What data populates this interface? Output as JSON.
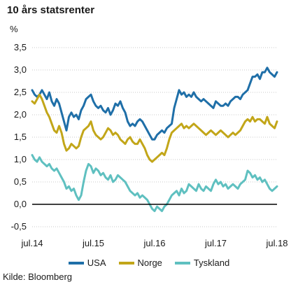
{
  "chart_data": {
    "type": "line",
    "title": "10 års statsrenter",
    "ylabel": "%",
    "source": "Kilde: Bloomberg",
    "ylim": [
      -0.5,
      3.5
    ],
    "y_ticks": [
      "3,5",
      "3,0",
      "2,5",
      "2,0",
      "1,5",
      "1,0",
      "0,5",
      "0,0",
      "-0,5"
    ],
    "y_tick_values": [
      3.5,
      3.0,
      2.5,
      2.0,
      1.5,
      1.0,
      0.5,
      0.0,
      -0.5
    ],
    "x_ticks": [
      "jul.14",
      "jul.15",
      "jul.16",
      "jul.17",
      "jul.18"
    ],
    "x_tick_values": [
      2014.5,
      2015.5,
      2016.5,
      2017.5,
      2018.5
    ],
    "xlim": [
      2014.5,
      2018.5
    ],
    "grid": "horizontal",
    "legend_position": "bottom",
    "series": [
      {
        "name": "USA",
        "color": "#1f6fa8",
        "x": [
          2014.5,
          2014.54,
          2014.58,
          2014.62,
          2014.66,
          2014.7,
          2014.74,
          2014.78,
          2014.82,
          2014.86,
          2014.9,
          2014.94,
          2014.98,
          2015.02,
          2015.06,
          2015.1,
          2015.14,
          2015.18,
          2015.22,
          2015.26,
          2015.3,
          2015.34,
          2015.38,
          2015.42,
          2015.46,
          2015.5,
          2015.54,
          2015.58,
          2015.62,
          2015.66,
          2015.7,
          2015.74,
          2015.78,
          2015.82,
          2015.86,
          2015.9,
          2015.94,
          2015.98,
          2016.02,
          2016.06,
          2016.1,
          2016.14,
          2016.18,
          2016.22,
          2016.26,
          2016.3,
          2016.34,
          2016.38,
          2016.42,
          2016.46,
          2016.5,
          2016.54,
          2016.58,
          2016.62,
          2016.66,
          2016.7,
          2016.74,
          2016.78,
          2016.82,
          2016.86,
          2016.9,
          2016.94,
          2016.98,
          2017.02,
          2017.06,
          2017.1,
          2017.14,
          2017.18,
          2017.22,
          2017.26,
          2017.3,
          2017.34,
          2017.38,
          2017.42,
          2017.46,
          2017.5,
          2017.54,
          2017.58,
          2017.62,
          2017.66,
          2017.7,
          2017.74,
          2017.78,
          2017.82,
          2017.86,
          2017.9,
          2017.94,
          2017.98,
          2018.02,
          2018.06,
          2018.1,
          2018.14,
          2018.18,
          2018.22,
          2018.26,
          2018.3,
          2018.34,
          2018.38,
          2018.42,
          2018.46,
          2018.5
        ],
        "values": [
          2.55,
          2.45,
          2.4,
          2.45,
          2.55,
          2.45,
          2.35,
          2.5,
          2.3,
          2.2,
          2.35,
          2.25,
          2.05,
          1.85,
          1.65,
          1.95,
          2.05,
          1.95,
          2.0,
          1.9,
          2.1,
          2.2,
          2.35,
          2.4,
          2.45,
          2.3,
          2.2,
          2.15,
          2.2,
          2.1,
          2.05,
          2.15,
          2.0,
          2.1,
          2.25,
          2.2,
          2.3,
          2.15,
          2.05,
          1.85,
          1.75,
          1.8,
          1.75,
          1.85,
          1.9,
          1.85,
          1.75,
          1.65,
          1.55,
          1.45,
          1.45,
          1.55,
          1.6,
          1.65,
          1.6,
          1.7,
          1.75,
          1.8,
          2.15,
          2.35,
          2.55,
          2.45,
          2.5,
          2.4,
          2.45,
          2.4,
          2.5,
          2.4,
          2.35,
          2.3,
          2.35,
          2.3,
          2.25,
          2.2,
          2.15,
          2.3,
          2.25,
          2.2,
          2.2,
          2.25,
          2.2,
          2.3,
          2.35,
          2.4,
          2.4,
          2.35,
          2.45,
          2.5,
          2.55,
          2.7,
          2.85,
          2.85,
          2.9,
          2.8,
          2.95,
          2.95,
          3.05,
          2.95,
          2.9,
          2.85,
          2.95
        ]
      },
      {
        "name": "Norge",
        "color": "#c2a619",
        "x": [
          2014.5,
          2014.54,
          2014.58,
          2014.62,
          2014.66,
          2014.7,
          2014.74,
          2014.78,
          2014.82,
          2014.86,
          2014.9,
          2014.94,
          2014.98,
          2015.02,
          2015.06,
          2015.1,
          2015.14,
          2015.18,
          2015.22,
          2015.26,
          2015.3,
          2015.34,
          2015.38,
          2015.42,
          2015.46,
          2015.5,
          2015.54,
          2015.58,
          2015.62,
          2015.66,
          2015.7,
          2015.74,
          2015.78,
          2015.82,
          2015.86,
          2015.9,
          2015.94,
          2015.98,
          2016.02,
          2016.06,
          2016.1,
          2016.14,
          2016.18,
          2016.22,
          2016.26,
          2016.3,
          2016.34,
          2016.38,
          2016.42,
          2016.46,
          2016.5,
          2016.54,
          2016.58,
          2016.62,
          2016.66,
          2016.7,
          2016.74,
          2016.78,
          2016.82,
          2016.86,
          2016.9,
          2016.94,
          2016.98,
          2017.02,
          2017.06,
          2017.1,
          2017.14,
          2017.18,
          2017.22,
          2017.26,
          2017.3,
          2017.34,
          2017.38,
          2017.42,
          2017.46,
          2017.5,
          2017.54,
          2017.58,
          2017.62,
          2017.66,
          2017.7,
          2017.74,
          2017.78,
          2017.82,
          2017.86,
          2017.9,
          2017.94,
          2017.98,
          2018.02,
          2018.06,
          2018.1,
          2018.14,
          2018.18,
          2018.22,
          2018.26,
          2018.3,
          2018.34,
          2018.38,
          2018.42,
          2018.46,
          2018.5
        ],
        "values": [
          2.3,
          2.25,
          2.35,
          2.45,
          2.35,
          2.2,
          2.05,
          1.95,
          1.8,
          1.65,
          1.6,
          1.75,
          1.6,
          1.35,
          1.2,
          1.25,
          1.35,
          1.3,
          1.25,
          1.3,
          1.5,
          1.65,
          1.7,
          1.75,
          1.85,
          1.65,
          1.55,
          1.5,
          1.45,
          1.5,
          1.6,
          1.7,
          1.65,
          1.55,
          1.6,
          1.55,
          1.45,
          1.4,
          1.35,
          1.45,
          1.5,
          1.4,
          1.35,
          1.35,
          1.45,
          1.35,
          1.25,
          1.1,
          1.0,
          0.95,
          1.0,
          1.05,
          1.1,
          1.15,
          1.1,
          1.25,
          1.45,
          1.6,
          1.65,
          1.7,
          1.75,
          1.8,
          1.7,
          1.75,
          1.7,
          1.75,
          1.8,
          1.75,
          1.7,
          1.65,
          1.6,
          1.55,
          1.6,
          1.65,
          1.6,
          1.55,
          1.6,
          1.65,
          1.6,
          1.55,
          1.5,
          1.55,
          1.6,
          1.55,
          1.6,
          1.65,
          1.75,
          1.85,
          1.9,
          1.85,
          1.95,
          1.85,
          1.9,
          1.9,
          1.85,
          1.8,
          1.95,
          1.8,
          1.75,
          1.7,
          1.85
        ]
      },
      {
        "name": "Tyskland",
        "color": "#5fc0c0",
        "x": [
          2014.5,
          2014.54,
          2014.58,
          2014.62,
          2014.66,
          2014.7,
          2014.74,
          2014.78,
          2014.82,
          2014.86,
          2014.9,
          2014.94,
          2014.98,
          2015.02,
          2015.06,
          2015.1,
          2015.14,
          2015.18,
          2015.22,
          2015.26,
          2015.3,
          2015.34,
          2015.38,
          2015.42,
          2015.46,
          2015.5,
          2015.54,
          2015.58,
          2015.62,
          2015.66,
          2015.7,
          2015.74,
          2015.78,
          2015.82,
          2015.86,
          2015.9,
          2015.94,
          2015.98,
          2016.02,
          2016.06,
          2016.1,
          2016.14,
          2016.18,
          2016.22,
          2016.26,
          2016.3,
          2016.34,
          2016.38,
          2016.42,
          2016.46,
          2016.5,
          2016.54,
          2016.58,
          2016.62,
          2016.66,
          2016.7,
          2016.74,
          2016.78,
          2016.82,
          2016.86,
          2016.9,
          2016.94,
          2016.98,
          2017.02,
          2017.06,
          2017.1,
          2017.14,
          2017.18,
          2017.22,
          2017.26,
          2017.3,
          2017.34,
          2017.38,
          2017.42,
          2017.46,
          2017.5,
          2017.54,
          2017.58,
          2017.62,
          2017.66,
          2017.7,
          2017.74,
          2017.78,
          2017.82,
          2017.86,
          2017.9,
          2017.94,
          2017.98,
          2018.02,
          2018.06,
          2018.1,
          2018.14,
          2018.18,
          2018.22,
          2018.26,
          2018.3,
          2018.34,
          2018.38,
          2018.42,
          2018.46,
          2018.5
        ],
        "values": [
          1.1,
          1.0,
          0.95,
          1.05,
          0.95,
          0.9,
          0.85,
          0.9,
          0.8,
          0.75,
          0.8,
          0.7,
          0.6,
          0.5,
          0.35,
          0.4,
          0.3,
          0.35,
          0.2,
          0.1,
          0.2,
          0.5,
          0.75,
          0.9,
          0.85,
          0.7,
          0.8,
          0.75,
          0.65,
          0.7,
          0.6,
          0.55,
          0.65,
          0.5,
          0.55,
          0.65,
          0.6,
          0.55,
          0.5,
          0.4,
          0.3,
          0.25,
          0.2,
          0.25,
          0.15,
          0.2,
          0.15,
          0.1,
          0.0,
          -0.1,
          -0.15,
          -0.05,
          -0.1,
          -0.15,
          -0.05,
          0.0,
          0.1,
          0.2,
          0.25,
          0.3,
          0.2,
          0.35,
          0.25,
          0.3,
          0.45,
          0.4,
          0.35,
          0.3,
          0.45,
          0.35,
          0.3,
          0.4,
          0.35,
          0.3,
          0.45,
          0.55,
          0.45,
          0.5,
          0.4,
          0.45,
          0.35,
          0.4,
          0.45,
          0.4,
          0.35,
          0.45,
          0.5,
          0.55,
          0.75,
          0.7,
          0.6,
          0.65,
          0.55,
          0.6,
          0.5,
          0.55,
          0.45,
          0.35,
          0.3,
          0.35,
          0.4
        ]
      }
    ]
  }
}
